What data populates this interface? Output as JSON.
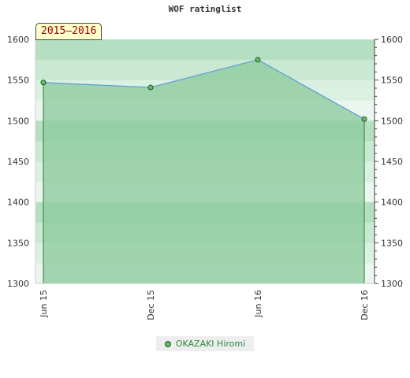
{
  "chart_data": {
    "type": "area",
    "title": "WOF ratinglist",
    "period": "2015–2016",
    "categories": [
      "Jun 15",
      "Dec 15",
      "Jun 16",
      "Dec 16"
    ],
    "series": [
      {
        "name": "OKAZAKI Hiromi",
        "values": [
          1547,
          1541,
          1575,
          1502
        ]
      }
    ],
    "yticks": [
      1300,
      1350,
      1400,
      1450,
      1500,
      1550,
      1600
    ],
    "ylim": [
      1300,
      1600
    ],
    "axes": "left and right",
    "legend_position": "bottom-center",
    "colors": {
      "area_fill": "#8fcc9f",
      "line": "#5b9bd5",
      "marker": "#66bb6a"
    }
  }
}
